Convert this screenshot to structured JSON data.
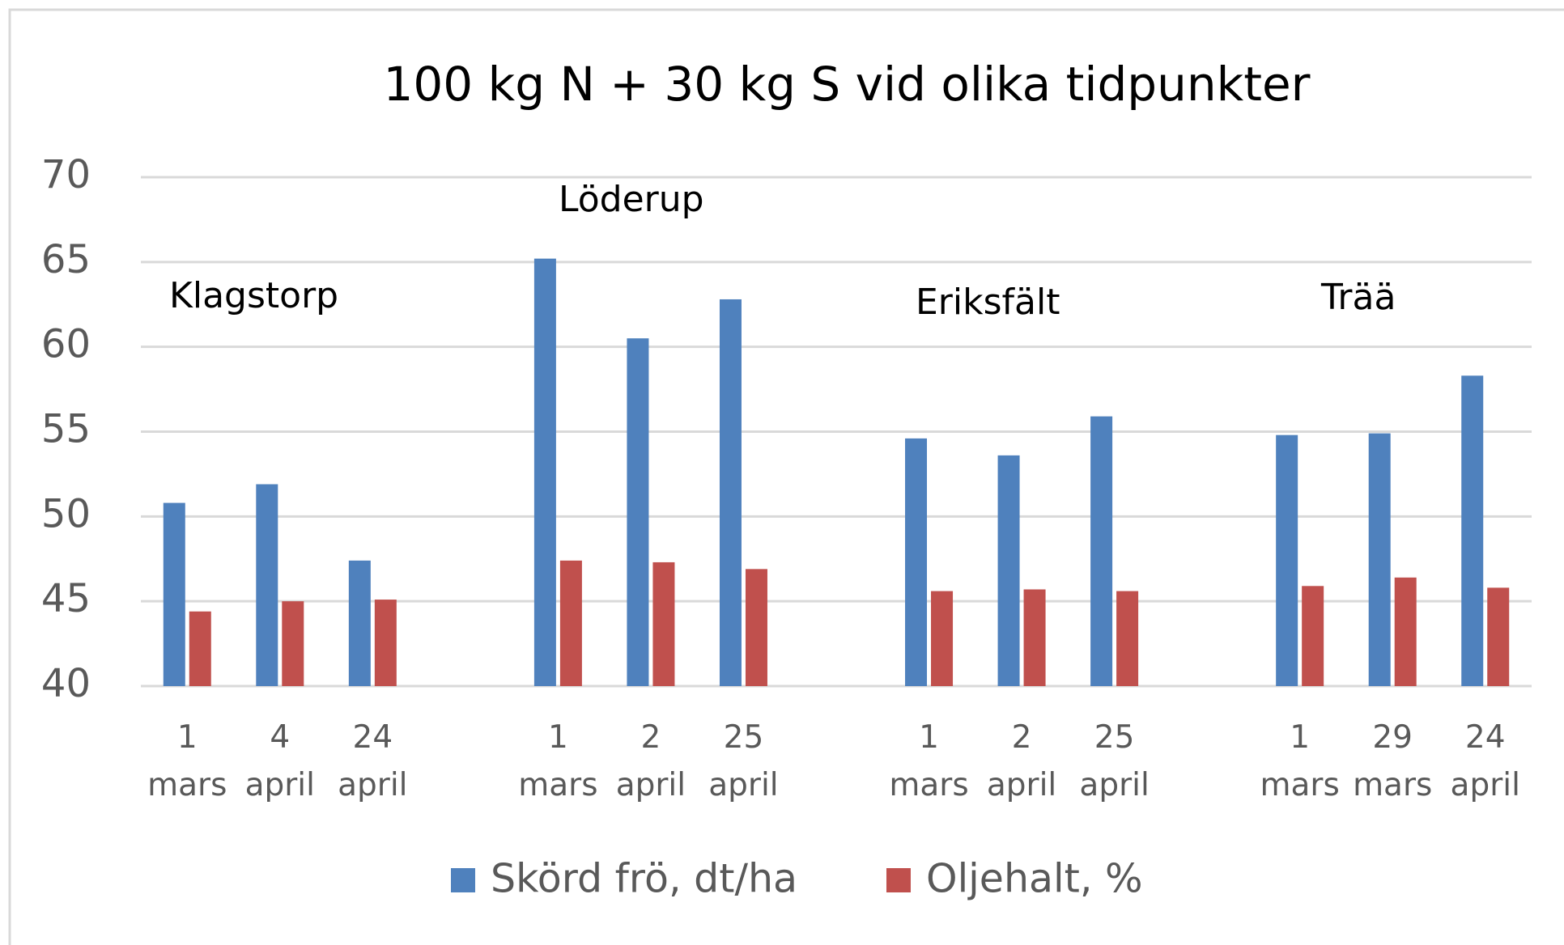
{
  "chart_data": {
    "type": "bar",
    "title": "100 kg N + 30 kg S vid olika tidpunkter",
    "categories": [
      "1 mars",
      "4 april",
      "24 april",
      null,
      "1 mars",
      "2 april",
      "25 april",
      null,
      "1 mars",
      "2 april",
      "25 april",
      null,
      "1 mars",
      "29 mars",
      "24 april"
    ],
    "series": [
      {
        "name": "Skörd frö, dt/ha",
        "color": "#4f81bd",
        "values": [
          50.8,
          51.9,
          47.4,
          null,
          65.2,
          60.5,
          62.8,
          null,
          54.6,
          53.6,
          55.9,
          null,
          54.8,
          54.9,
          58.3
        ]
      },
      {
        "name": "Oljehalt, %",
        "color": "#c0504d",
        "values": [
          44.4,
          45.0,
          45.1,
          null,
          47.4,
          47.3,
          46.9,
          null,
          45.6,
          45.7,
          45.6,
          null,
          45.9,
          46.4,
          45.8
        ]
      }
    ],
    "annotations": [
      "Klagstorp",
      "Löderup",
      "Eriksfält",
      "Trää"
    ],
    "ylim": [
      40,
      70
    ],
    "yticks": [
      40,
      45,
      50,
      55,
      60,
      65,
      70
    ],
    "grid": true,
    "legend": "bottom"
  }
}
